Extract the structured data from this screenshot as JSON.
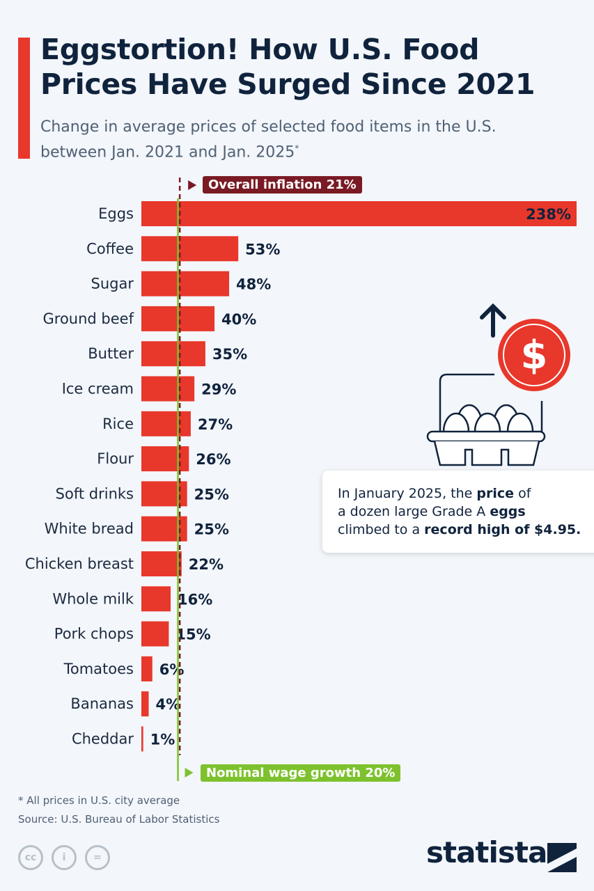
{
  "header": {
    "title_line1": "Eggstortion! How U.S. Food",
    "title_line2": "Prices Have Surged Since 2021",
    "subtitle_line1": "Change in average prices of selected food items in the U.S.",
    "subtitle_line2": "between Jan. 2021 and Jan. 2025",
    "subtitle_mark": "*"
  },
  "chart_data": {
    "type": "bar",
    "orientation": "horizontal",
    "title": "Eggstortion! How U.S. Food Prices Have Surged Since 2021",
    "categories": [
      "Eggs",
      "Coffee",
      "Sugar",
      "Ground beef",
      "Butter",
      "Ice cream",
      "Rice",
      "Flour",
      "Soft drinks",
      "White bread",
      "Chicken breast",
      "Whole milk",
      "Pork chops",
      "Tomatoes",
      "Bananas",
      "Cheddar"
    ],
    "values": [
      238,
      53,
      48,
      40,
      35,
      29,
      27,
      26,
      25,
      25,
      22,
      16,
      15,
      6,
      4,
      1
    ],
    "data_labels": [
      "238%",
      "53%",
      "48%",
      "40%",
      "35%",
      "29%",
      "27%",
      "26%",
      "25%",
      "25%",
      "22%",
      "16%",
      "15%",
      "6%",
      "4%",
      "1%"
    ],
    "unit": "%",
    "xlim": [
      0,
      238
    ],
    "grid": false,
    "reference_lines": [
      {
        "label": "Overall inflation 21%",
        "value": 21,
        "color": "#7a1a24",
        "style": "dashed"
      },
      {
        "label": "Nominal wage growth 20%",
        "value": 20,
        "color": "#7dc22e",
        "style": "solid"
      }
    ],
    "bar_color": "#e8372b"
  },
  "callout": {
    "t1": "In January 2025, the ",
    "b1": "price",
    "t2": " of",
    "t3": "a dozen large Grade A ",
    "b2": "eggs",
    "t4": "climbed to a ",
    "b3": "record high of $4.95."
  },
  "footer": {
    "note": "* All prices in U.S. city average",
    "source": "Source: U.S. Bureau of Labor Statistics",
    "logo": "statista",
    "cc": [
      "cc",
      "i",
      "="
    ]
  },
  "icons": [
    "arrow-up-icon",
    "dollar-coin-icon",
    "egg-carton-icon"
  ]
}
